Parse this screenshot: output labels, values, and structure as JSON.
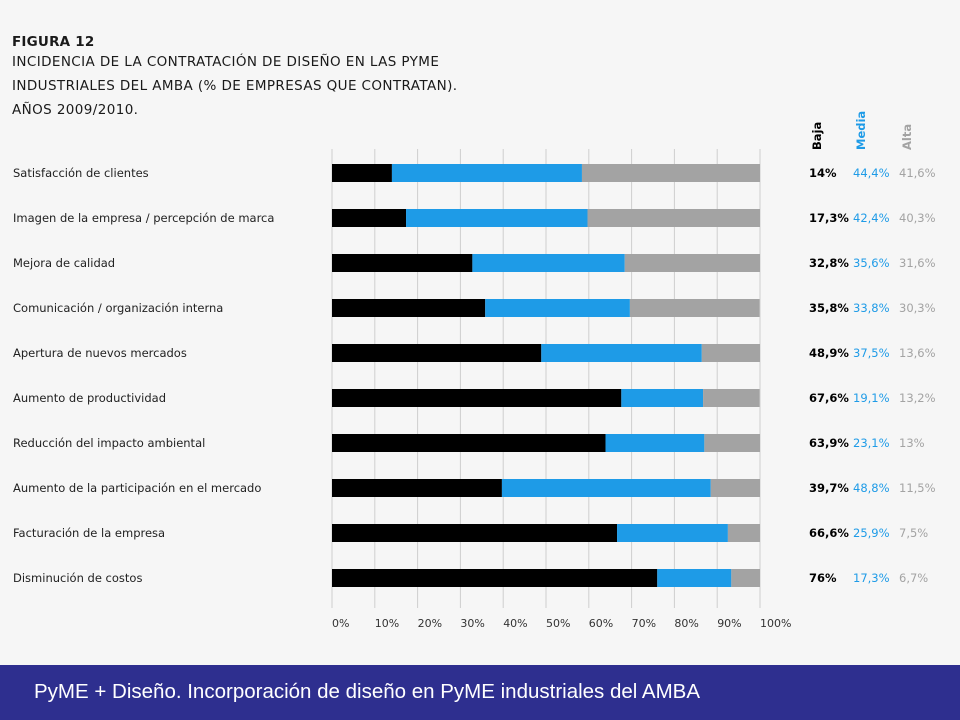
{
  "figure": {
    "label": "FIGURA 12",
    "title_lines": [
      "INCIDENCIA DE LA CONTRATACIÓN DE DISEÑO EN LAS PYME",
      "INDUSTRIALES DEL AMBA (% DE EMPRESAS QUE CONTRATAN).",
      "AÑOS 2009/2010."
    ]
  },
  "colors": {
    "baja": "#000000",
    "media": "#1e9be7",
    "alta": "#a3a3a3"
  },
  "chart_data": {
    "type": "bar",
    "orientation": "horizontal",
    "stacked": true,
    "categories": [
      "Satisfacción de clientes",
      "Imagen de la empresa / percepción de marca",
      "Mejora de calidad",
      "Comunicación / organización interna",
      "Apertura de nuevos mercados",
      "Aumento de productividad",
      "Reducción del impacto ambiental",
      "Aumento de la participación en el mercado",
      "Facturación de la empresa",
      "Disminución de costos"
    ],
    "series": [
      {
        "name": "Baja",
        "values": [
          14,
          17.3,
          32.8,
          35.8,
          48.9,
          67.6,
          63.9,
          39.7,
          66.6,
          76
        ],
        "labels": [
          "14%",
          "17,3%",
          "32,8%",
          "35,8%",
          "48,9%",
          "67,6%",
          "63,9%",
          "39,7%",
          "66,6%",
          "76%"
        ]
      },
      {
        "name": "Media",
        "values": [
          44.4,
          42.4,
          35.6,
          33.8,
          37.5,
          19.1,
          23.1,
          48.8,
          25.9,
          17.3
        ],
        "labels": [
          "44,4%",
          "42,4%",
          "35,6%",
          "33,8%",
          "37,5%",
          "19,1%",
          "23,1%",
          "48,8%",
          "25,9%",
          "17,3%"
        ]
      },
      {
        "name": "Alta",
        "values": [
          41.6,
          40.3,
          31.6,
          30.3,
          13.6,
          13.2,
          13,
          11.5,
          7.5,
          6.7
        ],
        "labels": [
          "41,6%",
          "40,3%",
          "31,6%",
          "30,3%",
          "13,6%",
          "13,2%",
          "13%",
          "11,5%",
          "7,5%",
          "6,7%"
        ]
      }
    ],
    "xlim": [
      0,
      100
    ],
    "xticks": [
      "0%",
      "10%",
      "20%",
      "30%",
      "40%",
      "50%",
      "60%",
      "70%",
      "80%",
      "90%",
      "100%"
    ],
    "grid": true,
    "legend": "top-right, rotated column headers"
  },
  "footer": {
    "text": "PyME + Diseño. Incorporación de diseño en PyME industriales del AMBA"
  }
}
